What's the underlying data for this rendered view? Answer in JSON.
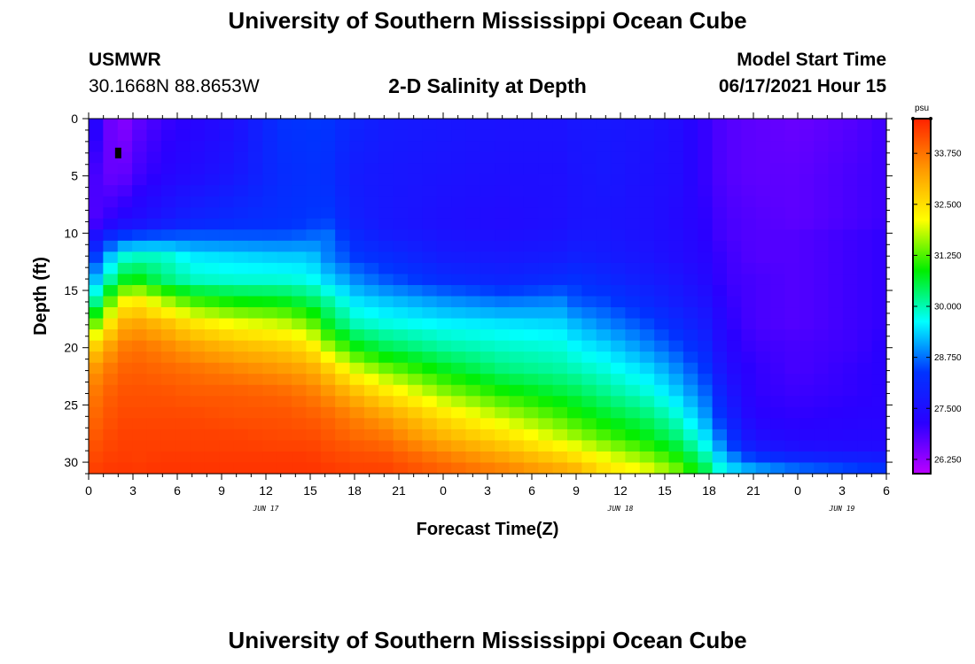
{
  "header": {
    "title": "University of Southern Mississippi Ocean Cube",
    "station": "USMWR",
    "coords": "30.1668N  88.8653W",
    "plot_title": "2-D Salinity at Depth",
    "model_label": "Model Start Time",
    "model_time": "06/17/2021 Hour 15"
  },
  "footer": {
    "title": "University of Southern Mississippi Ocean Cube"
  },
  "colors": {
    "colormap": [
      "#bb00ff",
      "#2a00ff",
      "#0033ff",
      "#00ffff",
      "#00ee00",
      "#ffff00",
      "#ff9900",
      "#ff2200"
    ],
    "marker": "#000000"
  },
  "chart_data": {
    "type": "heatmap",
    "title": "2-D Salinity at Depth",
    "xlabel": "Forecast Time(Z)",
    "ylabel": "Depth (ft)",
    "x_range": [
      0,
      54
    ],
    "y_range": [
      0,
      31
    ],
    "x_tick_values": [
      0,
      3,
      6,
      9,
      12,
      15,
      18,
      21,
      24,
      27,
      30,
      33,
      36,
      39,
      42,
      45,
      48,
      51,
      54
    ],
    "x_tick_labels": [
      "0",
      "3",
      "6",
      "9",
      "12",
      "15",
      "18",
      "21",
      "0",
      "3",
      "6",
      "9",
      "12",
      "15",
      "18",
      "21",
      "0",
      "3",
      "6"
    ],
    "date_labels": [
      {
        "text": "JUN 17",
        "at": 12
      },
      {
        "text": "JUN 18",
        "at": 36
      },
      {
        "text": "JUN 19",
        "at": 51
      }
    ],
    "y_tick_values": [
      0,
      5,
      10,
      15,
      20,
      25,
      30
    ],
    "y_tick_labels": [
      "0",
      "5",
      "10",
      "15",
      "20",
      "25",
      "30"
    ],
    "colorbar": {
      "unit": "psu",
      "range": [
        25.9,
        34.6
      ],
      "tick_values": [
        26.25,
        27.5,
        28.75,
        30.0,
        31.25,
        32.5,
        33.75
      ],
      "tick_labels": [
        "26.250",
        "27.500",
        "28.750",
        "30.000",
        "31.250",
        "32.500",
        "33.750"
      ]
    },
    "grid_shape": {
      "cols": 55,
      "rows": 32
    },
    "profile_times": [
      0,
      2,
      3,
      5,
      7,
      10,
      13,
      15,
      16,
      18,
      20,
      24,
      28,
      32,
      33,
      35,
      38,
      40,
      42,
      43,
      45,
      48,
      52,
      54
    ],
    "profile_depths": [
      0,
      5,
      9,
      10,
      12,
      14,
      16,
      18,
      20,
      22,
      24,
      26,
      28,
      29,
      30,
      31
    ],
    "profile_values": [
      [
        27.6,
        27.0,
        26.7,
        27.2,
        28.0,
        28.8,
        29.6,
        31.0,
        32.5,
        33.3,
        33.6,
        33.8,
        34.0,
        34.1,
        34.2,
        34.3
      ],
      [
        26.2,
        26.5,
        27.3,
        28.2,
        29.7,
        30.5,
        32.0,
        33.0,
        33.6,
        33.9,
        34.1,
        34.2,
        34.3,
        34.3,
        34.4,
        34.4
      ],
      [
        26.6,
        26.9,
        27.4,
        28.3,
        29.9,
        30.9,
        32.5,
        33.3,
        33.8,
        34.0,
        34.1,
        34.2,
        34.3,
        34.3,
        34.3,
        34.4
      ],
      [
        27.0,
        27.2,
        27.7,
        28.4,
        29.9,
        30.3,
        31.8,
        33.0,
        33.6,
        33.9,
        34.1,
        34.2,
        34.3,
        34.3,
        34.4,
        34.4
      ],
      [
        27.2,
        27.4,
        28.0,
        28.5,
        29.5,
        29.9,
        31.2,
        32.5,
        33.3,
        33.8,
        34.0,
        34.2,
        34.3,
        34.3,
        34.4,
        34.4
      ],
      [
        27.5,
        27.7,
        28.2,
        28.5,
        29.4,
        29.8,
        30.9,
        32.1,
        33.0,
        33.6,
        34.0,
        34.1,
        34.3,
        34.3,
        34.4,
        34.4
      ],
      [
        28.3,
        28.2,
        28.3,
        28.5,
        29.3,
        29.8,
        30.8,
        31.9,
        32.8,
        33.4,
        33.9,
        34.1,
        34.2,
        34.3,
        34.4,
        34.4
      ],
      [
        28.4,
        28.3,
        28.4,
        28.6,
        29.3,
        29.7,
        30.5,
        31.5,
        32.5,
        33.2,
        33.7,
        34.0,
        34.2,
        34.3,
        34.4,
        34.4
      ],
      [
        28.4,
        28.3,
        28.5,
        28.8,
        28.9,
        29.4,
        30.2,
        30.8,
        31.8,
        32.9,
        33.5,
        33.9,
        34.1,
        34.2,
        34.3,
        34.4
      ],
      [
        28.0,
        27.8,
        27.9,
        28.1,
        28.4,
        28.9,
        29.5,
        30.0,
        30.9,
        32.0,
        33.0,
        33.6,
        33.9,
        34.1,
        34.2,
        34.3
      ],
      [
        27.8,
        27.7,
        27.7,
        27.8,
        28.2,
        28.6,
        29.3,
        29.8,
        30.5,
        31.5,
        32.5,
        33.3,
        33.8,
        34.0,
        34.2,
        34.3
      ],
      [
        27.7,
        27.6,
        27.5,
        27.6,
        27.8,
        28.2,
        29.0,
        29.6,
        30.1,
        30.8,
        31.6,
        32.5,
        33.1,
        33.5,
        33.8,
        34.0
      ],
      [
        27.6,
        27.5,
        27.4,
        27.5,
        27.7,
        28.0,
        28.8,
        29.5,
        29.9,
        30.3,
        31.0,
        31.8,
        32.6,
        33.0,
        33.4,
        33.7
      ],
      [
        27.6,
        27.5,
        27.5,
        27.6,
        27.8,
        28.2,
        28.9,
        29.4,
        29.8,
        30.1,
        30.6,
        31.2,
        31.9,
        32.4,
        32.9,
        33.3
      ],
      [
        27.7,
        27.6,
        27.6,
        27.7,
        27.9,
        28.3,
        28.6,
        29.2,
        29.6,
        30.0,
        30.5,
        31.0,
        31.7,
        32.2,
        32.7,
        33.2
      ],
      [
        27.7,
        27.7,
        27.6,
        27.7,
        27.8,
        28.1,
        28.5,
        28.9,
        29.4,
        29.8,
        30.2,
        30.7,
        31.3,
        31.8,
        32.2,
        32.6
      ],
      [
        27.6,
        27.5,
        27.5,
        27.5,
        27.6,
        27.8,
        28.1,
        28.5,
        28.9,
        29.4,
        29.8,
        30.3,
        30.8,
        31.2,
        31.7,
        32.1
      ],
      [
        27.4,
        27.4,
        27.3,
        27.4,
        27.4,
        27.6,
        27.8,
        28.1,
        28.5,
        28.9,
        29.3,
        29.8,
        30.3,
        30.7,
        31.1,
        31.5
      ],
      [
        27.0,
        27.0,
        27.1,
        27.1,
        27.2,
        27.3,
        27.5,
        27.7,
        28.0,
        28.3,
        28.6,
        28.9,
        29.4,
        29.7,
        30.1,
        30.5
      ],
      [
        26.8,
        26.8,
        26.9,
        26.9,
        27.0,
        27.0,
        27.1,
        27.2,
        27.3,
        27.5,
        27.8,
        28.1,
        28.6,
        28.9,
        29.3,
        29.7
      ],
      [
        26.7,
        26.7,
        26.8,
        26.8,
        26.8,
        26.9,
        26.9,
        26.9,
        27.0,
        27.1,
        27.1,
        27.2,
        27.5,
        27.9,
        28.7,
        29.3
      ],
      [
        26.6,
        26.7,
        26.7,
        26.8,
        26.8,
        26.8,
        26.8,
        26.8,
        26.9,
        26.9,
        27.0,
        27.1,
        27.3,
        27.6,
        28.3,
        29.0
      ],
      [
        26.8,
        26.9,
        26.9,
        27.0,
        27.0,
        27.0,
        27.0,
        27.0,
        27.0,
        27.1,
        27.1,
        27.2,
        27.3,
        27.5,
        28.1,
        28.7
      ],
      [
        27.0,
        27.0,
        27.0,
        27.1,
        27.1,
        27.1,
        27.1,
        27.1,
        27.2,
        27.2,
        27.2,
        27.2,
        27.3,
        27.5,
        28.0,
        28.6
      ]
    ],
    "marker": {
      "x": 2,
      "y": 3
    }
  }
}
